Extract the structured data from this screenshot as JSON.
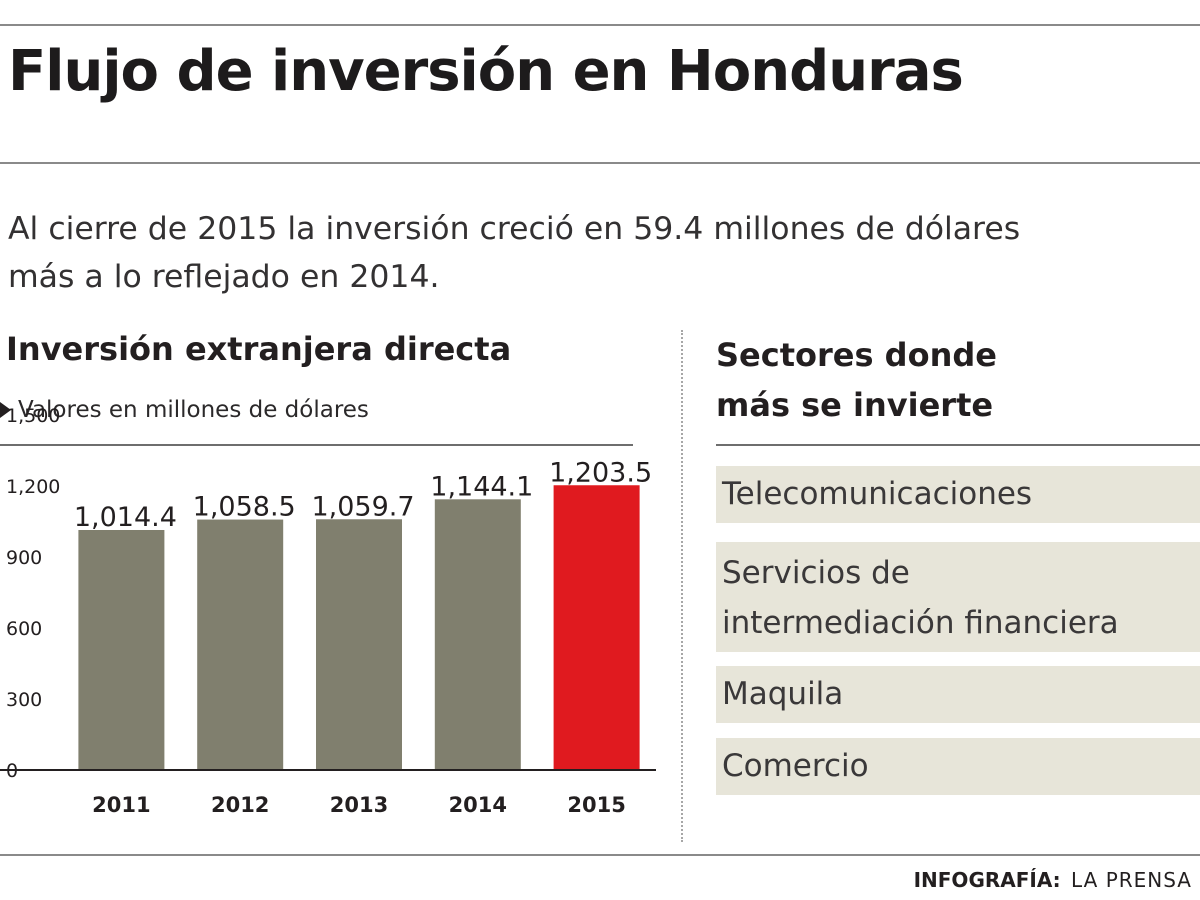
{
  "title": "Flujo de inversión en Honduras",
  "intro": {
    "line1": "Al cierre de 2015 la inversión creció en 59.4 millones de dólares",
    "line2": "más a lo reflejado en 2014."
  },
  "chart_data": {
    "type": "bar",
    "title": "Inversión extranjera directa",
    "subtitle": "Valores en millones de dólares",
    "categories": [
      "2011",
      "2012",
      "2013",
      "2014",
      "2015"
    ],
    "values": [
      1014.4,
      1058.5,
      1059.7,
      1144.1,
      1203.5
    ],
    "value_labels": [
      "1,014.4",
      "1,058.5",
      "1,059.7",
      "1,144.1",
      "1,203.5"
    ],
    "ylim": [
      0,
      1500
    ],
    "yticks": [
      0,
      300,
      600,
      900,
      1200,
      1500
    ],
    "ytick_labels": [
      "0",
      "300",
      "600",
      "900",
      "1,200",
      "1,500"
    ],
    "xlabel": "",
    "ylabel": "",
    "grid": false,
    "colors": {
      "bar": "#807f6e",
      "highlight": "#e01a1f",
      "highlight_index": 4
    }
  },
  "sectors": {
    "title_line1": "Sectores donde",
    "title_line2": "más se invierte",
    "items": [
      {
        "lines": [
          "Telecomunicaciones"
        ]
      },
      {
        "lines": [
          "Servicios de",
          "intermediación financiera"
        ]
      },
      {
        "lines": [
          "Maquila"
        ]
      },
      {
        "lines": [
          "Comercio"
        ]
      }
    ],
    "background": "#e7e5d9"
  },
  "credit": {
    "label": "INFOGRAFÍA:",
    "source": "LA PRENSA"
  }
}
